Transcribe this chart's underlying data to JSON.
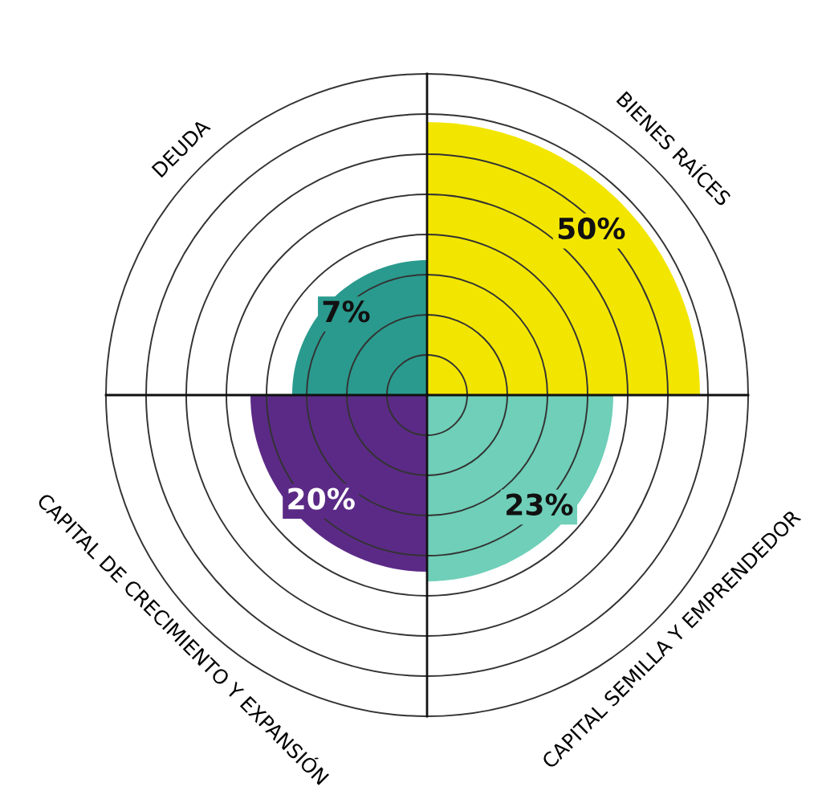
{
  "chart_data": {
    "type": "other",
    "categories": [
      "BIENES RAÍCES",
      "CAPITAL SEMILLA Y EMPRENDEDOR",
      "CAPITAL DE CRECIMIENTO Y EXPANSIÓN",
      "DEUDA"
    ],
    "values": [
      50,
      23,
      20,
      7
    ],
    "colors": [
      "#f2e600",
      "#6fcfb8",
      "#5b2a86",
      "#2a9a8e"
    ],
    "value_labels": [
      "50%",
      "23%",
      "20%",
      "7%"
    ]
  }
}
